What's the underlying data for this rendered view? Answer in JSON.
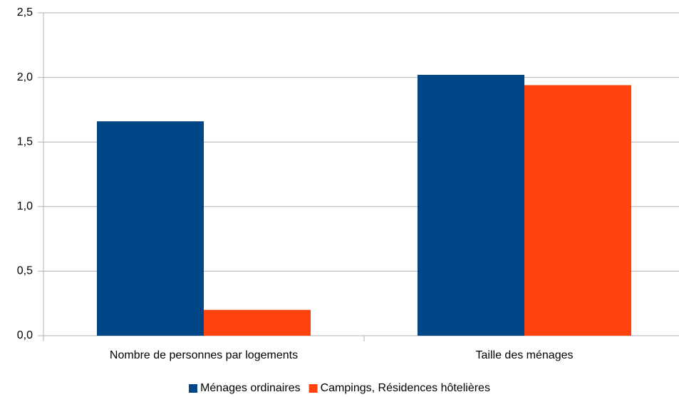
{
  "chart_data": {
    "type": "bar",
    "categories": [
      "Nombre de personnes par logements",
      "Taille des ménages"
    ],
    "series": [
      {
        "name": "Ménages ordinaires",
        "color": "#004586",
        "values": [
          1.66,
          2.02
        ]
      },
      {
        "name": "Campings, Résidences hôtelières",
        "color": "#ff420e",
        "values": [
          0.2,
          1.94
        ]
      }
    ],
    "ylim": [
      0,
      2.5
    ],
    "yticks": [
      {
        "value": 0,
        "label": "0,0"
      },
      {
        "value": 0.5,
        "label": "0,5"
      },
      {
        "value": 1,
        "label": "1,0"
      },
      {
        "value": 1.5,
        "label": "1,5"
      },
      {
        "value": 2,
        "label": "2,0"
      },
      {
        "value": 2.5,
        "label": "2,5"
      }
    ],
    "grid": true,
    "legend": "bottom"
  }
}
